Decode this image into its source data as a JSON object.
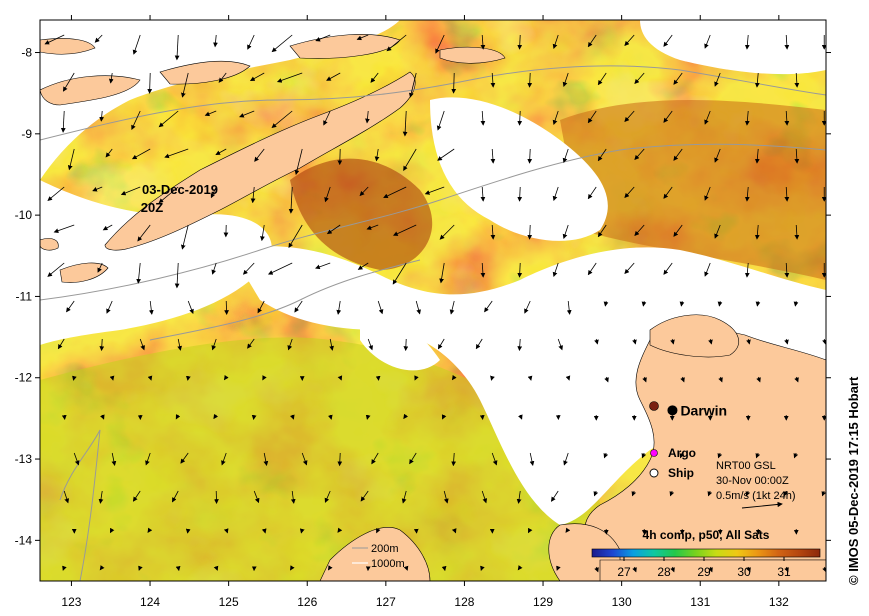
{
  "map": {
    "credit": "© IMOS 05-Dec-2019 17:15 Hobart",
    "swath_date": "03-Dec-2019",
    "swath_time": "20Z",
    "composite_label": "4h comp, p50, All Sats",
    "current_info": [
      "NRT00 GSL",
      "30-Nov 00:00Z",
      "0.5m/s (1kt 24h)"
    ],
    "depth_legend": [
      "200m",
      "1000m"
    ],
    "places": [
      {
        "name": "Darwin",
        "lon": 130.85,
        "lat": -12.45
      }
    ],
    "legend_markers": [
      {
        "label": "Argo",
        "color": "#ff00ff"
      },
      {
        "label": "Ship",
        "color": "#ffffff"
      }
    ],
    "x_ticks": [
      123,
      124,
      125,
      126,
      127,
      128,
      129,
      130,
      131,
      132
    ],
    "y_ticks": [
      -8,
      -9,
      -10,
      -11,
      -12,
      -13,
      -14
    ],
    "lon_range": [
      122.6,
      132.6
    ],
    "lat_range": [
      -14.5,
      -7.6
    ],
    "colorbar": {
      "ticks": [
        27,
        28,
        29,
        30,
        31
      ],
      "range": [
        26.2,
        31.9
      ],
      "colors": [
        "#1a1a8c",
        "#1e46d2",
        "#0a9fe0",
        "#10c8a0",
        "#23c84a",
        "#78d21e",
        "#c8dc14",
        "#f0c814",
        "#eb9614",
        "#d26414",
        "#b4460f",
        "#8c280a"
      ]
    },
    "colors": {
      "land": "#fcc99b",
      "missing": "#ffffff"
    }
  }
}
